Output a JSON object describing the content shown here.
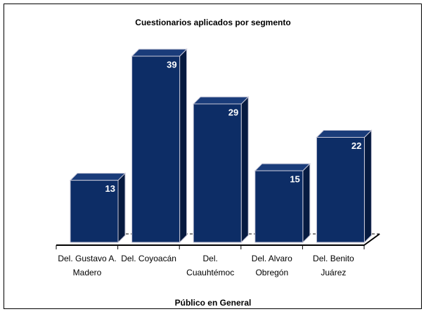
{
  "chart_data": {
    "type": "bar3d",
    "title": "Cuestionarios aplicados por segmento",
    "x_label": "Público en General",
    "categories": [
      "Del. Gustavo A. Madero",
      "Del. Coyoacán",
      "Del. Cuauhtémoc",
      "Del. Alvaro Obregón",
      "Del. Benito Juárez"
    ],
    "values": [
      13,
      39,
      29,
      15,
      22
    ],
    "color": "#0d2d66"
  }
}
